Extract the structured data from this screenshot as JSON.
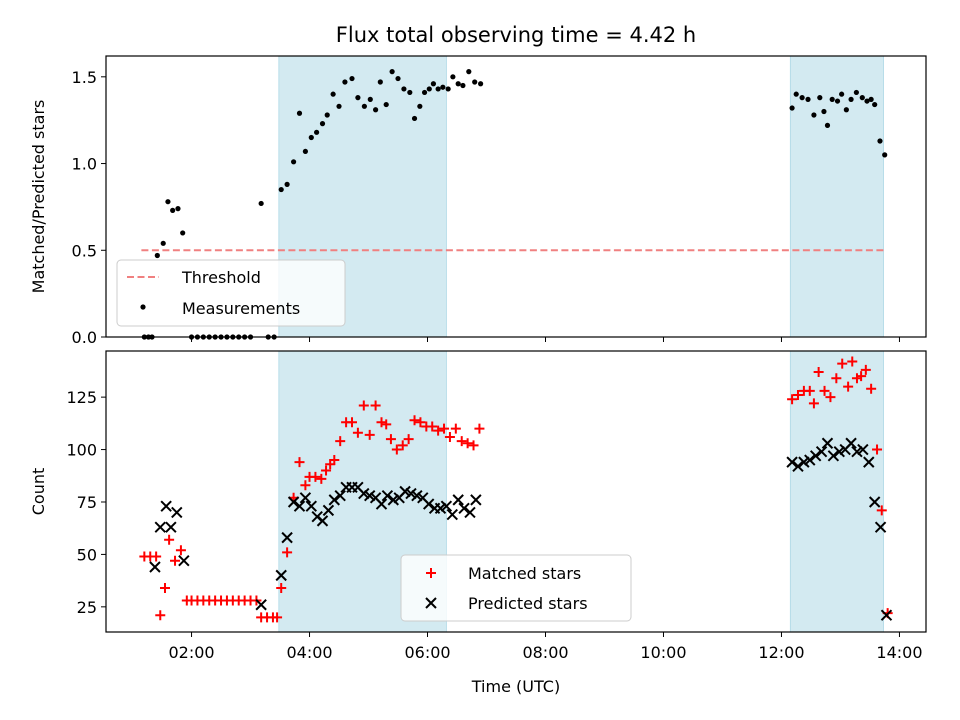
{
  "figure": {
    "title": "Flux total observing time = 4.42 h"
  },
  "chart_data": [
    {
      "type": "scatter",
      "ylabel": "Matched/Predicted stars",
      "xlim": [
        0.55,
        14.45
      ],
      "ylim": [
        0,
        1.62
      ],
      "yticks": [
        0.0,
        0.5,
        1.0,
        1.5
      ],
      "ytick_labels": [
        "0.0",
        "0.5",
        "1.0",
        "1.5"
      ],
      "shaded_intervals": [
        [
          3.48,
          6.32
        ],
        [
          12.15,
          13.73
        ]
      ],
      "shade_color": "#d3eaf1",
      "legend_position": "lower-left",
      "threshold": {
        "name": "Threshold",
        "value": 0.5,
        "x_range": [
          1.15,
          13.73
        ],
        "color": "#f08080"
      },
      "series": [
        {
          "name": "Measurements",
          "color": "#000000",
          "marker": "dot",
          "points": [
            [
              1.2,
              0.0
            ],
            [
              1.27,
              0.0
            ],
            [
              1.33,
              0.0
            ],
            [
              1.42,
              0.47
            ],
            [
              1.52,
              0.54
            ],
            [
              1.6,
              0.78
            ],
            [
              1.68,
              0.73
            ],
            [
              1.77,
              0.74
            ],
            [
              1.85,
              0.6
            ],
            [
              2.0,
              0.0
            ],
            [
              2.1,
              0.0
            ],
            [
              2.2,
              0.0
            ],
            [
              2.3,
              0.0
            ],
            [
              2.4,
              0.0
            ],
            [
              2.5,
              0.0
            ],
            [
              2.6,
              0.0
            ],
            [
              2.7,
              0.0
            ],
            [
              2.8,
              0.0
            ],
            [
              2.9,
              0.0
            ],
            [
              3.0,
              0.0
            ],
            [
              3.18,
              0.77
            ],
            [
              3.3,
              0.0
            ],
            [
              3.4,
              0.0
            ],
            [
              3.52,
              0.85
            ],
            [
              3.62,
              0.88
            ],
            [
              3.73,
              1.01
            ],
            [
              3.83,
              1.29
            ],
            [
              3.93,
              1.07
            ],
            [
              4.03,
              1.15
            ],
            [
              4.12,
              1.18
            ],
            [
              4.22,
              1.23
            ],
            [
              4.3,
              1.28
            ],
            [
              4.4,
              1.4
            ],
            [
              4.5,
              1.33
            ],
            [
              4.6,
              1.47
            ],
            [
              4.72,
              1.49
            ],
            [
              4.82,
              1.38
            ],
            [
              4.93,
              1.33
            ],
            [
              5.03,
              1.37
            ],
            [
              5.12,
              1.31
            ],
            [
              5.2,
              1.47
            ],
            [
              5.3,
              1.34
            ],
            [
              5.4,
              1.53
            ],
            [
              5.5,
              1.49
            ],
            [
              5.6,
              1.43
            ],
            [
              5.7,
              1.41
            ],
            [
              5.78,
              1.26
            ],
            [
              5.87,
              1.33
            ],
            [
              5.95,
              1.41
            ],
            [
              6.03,
              1.43
            ],
            [
              6.1,
              1.46
            ],
            [
              6.18,
              1.43
            ],
            [
              6.26,
              1.44
            ],
            [
              6.35,
              1.43
            ],
            [
              6.43,
              1.5
            ],
            [
              6.52,
              1.46
            ],
            [
              6.6,
              1.45
            ],
            [
              6.7,
              1.53
            ],
            [
              6.8,
              1.47
            ],
            [
              6.9,
              1.46
            ],
            [
              12.18,
              1.32
            ],
            [
              12.25,
              1.4
            ],
            [
              12.35,
              1.38
            ],
            [
              12.45,
              1.37
            ],
            [
              12.55,
              1.28
            ],
            [
              12.65,
              1.38
            ],
            [
              12.72,
              1.3
            ],
            [
              12.78,
              1.22
            ],
            [
              12.86,
              1.37
            ],
            [
              12.95,
              1.36
            ],
            [
              13.02,
              1.4
            ],
            [
              13.1,
              1.31
            ],
            [
              13.18,
              1.37
            ],
            [
              13.27,
              1.41
            ],
            [
              13.37,
              1.38
            ],
            [
              13.45,
              1.36
            ],
            [
              13.52,
              1.37
            ],
            [
              13.58,
              1.34
            ],
            [
              13.67,
              1.13
            ],
            [
              13.75,
              1.05
            ]
          ]
        }
      ]
    },
    {
      "type": "scatter",
      "xlabel": "Time (UTC)",
      "ylabel": "Count",
      "xlim": [
        0.55,
        14.45
      ],
      "ylim": [
        13,
        147
      ],
      "xticks": [
        2,
        4,
        6,
        8,
        10,
        12,
        14
      ],
      "xtick_labels": [
        "02:00",
        "04:00",
        "06:00",
        "08:00",
        "10:00",
        "12:00",
        "14:00"
      ],
      "yticks": [
        25,
        50,
        75,
        100,
        125
      ],
      "ytick_labels": [
        "25",
        "50",
        "75",
        "100",
        "125"
      ],
      "shaded_intervals": [
        [
          3.48,
          6.32
        ],
        [
          12.15,
          13.73
        ]
      ],
      "shade_color": "#d3eaf1",
      "legend_position": "lower-center",
      "series": [
        {
          "name": "Matched stars",
          "color": "#ff0000",
          "marker": "plus",
          "points": [
            [
              1.2,
              49
            ],
            [
              1.3,
              49
            ],
            [
              1.4,
              49
            ],
            [
              1.47,
              21
            ],
            [
              1.55,
              34
            ],
            [
              1.62,
              57
            ],
            [
              1.72,
              47
            ],
            [
              1.82,
              52
            ],
            [
              1.92,
              28
            ],
            [
              2.0,
              28
            ],
            [
              2.1,
              28
            ],
            [
              2.2,
              28
            ],
            [
              2.3,
              28
            ],
            [
              2.4,
              28
            ],
            [
              2.5,
              28
            ],
            [
              2.6,
              28
            ],
            [
              2.7,
              28
            ],
            [
              2.8,
              28
            ],
            [
              2.9,
              28
            ],
            [
              3.0,
              28
            ],
            [
              3.1,
              28
            ],
            [
              3.18,
              20
            ],
            [
              3.28,
              20
            ],
            [
              3.38,
              20
            ],
            [
              3.45,
              20
            ],
            [
              3.52,
              34
            ],
            [
              3.62,
              51
            ],
            [
              3.73,
              77
            ],
            [
              3.83,
              94
            ],
            [
              3.93,
              83
            ],
            [
              4.0,
              87
            ],
            [
              4.1,
              87
            ],
            [
              4.2,
              86
            ],
            [
              4.28,
              90
            ],
            [
              4.35,
              93
            ],
            [
              4.42,
              95
            ],
            [
              4.52,
              104
            ],
            [
              4.62,
              113
            ],
            [
              4.72,
              113
            ],
            [
              4.82,
              108
            ],
            [
              4.92,
              121
            ],
            [
              5.02,
              107
            ],
            [
              5.12,
              121
            ],
            [
              5.22,
              113
            ],
            [
              5.3,
              112
            ],
            [
              5.38,
              105
            ],
            [
              5.48,
              100
            ],
            [
              5.58,
              102
            ],
            [
              5.68,
              105
            ],
            [
              5.78,
              114
            ],
            [
              5.88,
              113
            ],
            [
              5.98,
              111
            ],
            [
              6.08,
              111
            ],
            [
              6.18,
              109
            ],
            [
              6.28,
              110
            ],
            [
              6.38,
              106
            ],
            [
              6.48,
              110
            ],
            [
              6.58,
              104
            ],
            [
              6.68,
              103
            ],
            [
              6.78,
              102
            ],
            [
              6.88,
              110
            ],
            [
              12.18,
              124
            ],
            [
              12.28,
              126
            ],
            [
              12.38,
              128
            ],
            [
              12.48,
              128
            ],
            [
              12.55,
              122
            ],
            [
              12.63,
              137
            ],
            [
              12.73,
              128
            ],
            [
              12.83,
              125
            ],
            [
              12.93,
              134
            ],
            [
              13.03,
              141
            ],
            [
              13.13,
              130
            ],
            [
              13.2,
              142
            ],
            [
              13.28,
              134
            ],
            [
              13.35,
              135
            ],
            [
              13.43,
              138
            ],
            [
              13.52,
              129
            ],
            [
              13.62,
              100
            ],
            [
              13.7,
              71
            ],
            [
              13.8,
              22
            ]
          ]
        },
        {
          "name": "Predicted stars",
          "color": "#000000",
          "marker": "x",
          "points": [
            [
              1.38,
              44
            ],
            [
              1.47,
              63
            ],
            [
              1.57,
              73
            ],
            [
              1.65,
              63
            ],
            [
              1.75,
              70
            ],
            [
              1.87,
              47
            ],
            [
              3.18,
              26
            ],
            [
              3.52,
              40
            ],
            [
              3.62,
              58
            ],
            [
              3.73,
              75
            ],
            [
              3.83,
              73
            ],
            [
              3.93,
              77
            ],
            [
              4.03,
              73
            ],
            [
              4.13,
              68
            ],
            [
              4.22,
              66
            ],
            [
              4.32,
              71
            ],
            [
              4.42,
              76
            ],
            [
              4.52,
              78
            ],
            [
              4.62,
              82
            ],
            [
              4.72,
              82
            ],
            [
              4.82,
              82
            ],
            [
              4.92,
              79
            ],
            [
              5.02,
              78
            ],
            [
              5.12,
              77
            ],
            [
              5.22,
              74
            ],
            [
              5.32,
              78
            ],
            [
              5.42,
              76
            ],
            [
              5.52,
              77
            ],
            [
              5.62,
              80
            ],
            [
              5.72,
              79
            ],
            [
              5.82,
              78
            ],
            [
              5.92,
              77
            ],
            [
              6.02,
              74
            ],
            [
              6.12,
              72
            ],
            [
              6.22,
              72
            ],
            [
              6.32,
              73
            ],
            [
              6.42,
              69
            ],
            [
              6.52,
              76
            ],
            [
              6.62,
              72
            ],
            [
              6.72,
              70
            ],
            [
              6.82,
              76
            ],
            [
              12.18,
              94
            ],
            [
              12.28,
              92
            ],
            [
              12.38,
              94
            ],
            [
              12.48,
              95
            ],
            [
              12.58,
              97
            ],
            [
              12.68,
              99
            ],
            [
              12.78,
              103
            ],
            [
              12.88,
              97
            ],
            [
              12.98,
              99
            ],
            [
              13.08,
              100
            ],
            [
              13.18,
              103
            ],
            [
              13.28,
              99
            ],
            [
              13.38,
              100
            ],
            [
              13.48,
              94
            ],
            [
              13.58,
              75
            ],
            [
              13.68,
              63
            ],
            [
              13.78,
              21
            ]
          ]
        }
      ]
    }
  ]
}
